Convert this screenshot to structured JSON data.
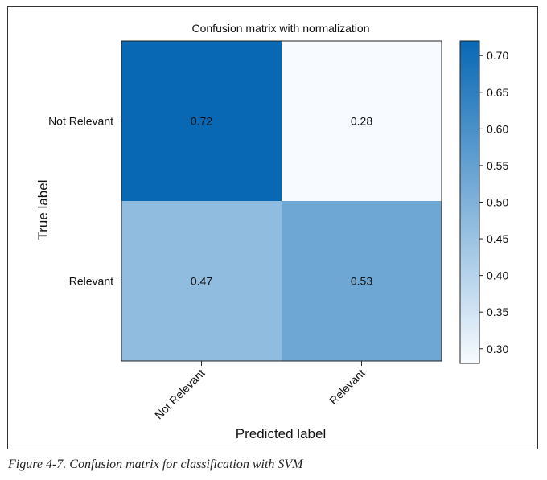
{
  "caption": "Figure 4-7. Confusion matrix for classification with SVM",
  "chart_data": {
    "type": "heatmap",
    "title": "Confusion matrix with normalization",
    "xlabel": "Predicted label",
    "ylabel": "True label",
    "x_categories": [
      "Not Relevant",
      "Relevant"
    ],
    "y_categories": [
      "Not Relevant",
      "Relevant"
    ],
    "values": [
      [
        0.72,
        0.28
      ],
      [
        0.47,
        0.53
      ]
    ],
    "cell_labels": [
      [
        "0.72",
        "0.28"
      ],
      [
        "0.47",
        "0.53"
      ]
    ],
    "colorbar": {
      "ticks": [
        0.7,
        0.65,
        0.6,
        0.55,
        0.5,
        0.45,
        0.4,
        0.35,
        0.3
      ],
      "tick_labels": [
        "0.70",
        "0.65",
        "0.60",
        "0.55",
        "0.50",
        "0.45",
        "0.40",
        "0.35",
        "0.30"
      ],
      "range": [
        0.28,
        0.72
      ]
    },
    "colormap": "Blues",
    "colors": {
      "low": "#f7fbff",
      "high": "#0868b4"
    }
  }
}
